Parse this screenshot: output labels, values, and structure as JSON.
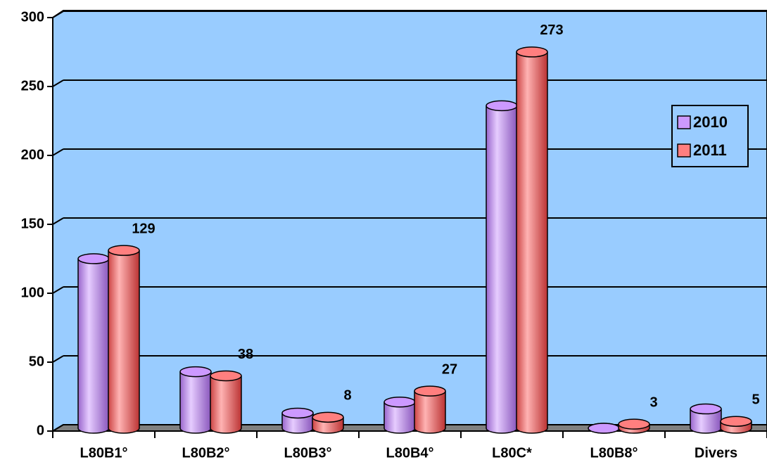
{
  "chart_data": {
    "type": "bar",
    "categories": [
      "L80B1°",
      "L80B2°",
      "L80B3°",
      "L80B4°",
      "L80C*",
      "L80B8°",
      "Divers"
    ],
    "series": [
      {
        "name": "2010",
        "color": "#cc99ff",
        "values": [
          123,
          41,
          11,
          19,
          234,
          0,
          14
        ]
      },
      {
        "name": "2011",
        "color": "#ff7f7f",
        "values": [
          129,
          38,
          8,
          27,
          273,
          3,
          5
        ]
      }
    ],
    "data_labels_series": [
      1
    ],
    "ylim": [
      0,
      300
    ],
    "yticks": [
      0,
      50,
      100,
      150,
      200,
      250,
      300
    ],
    "grid": true,
    "legend": "right"
  }
}
